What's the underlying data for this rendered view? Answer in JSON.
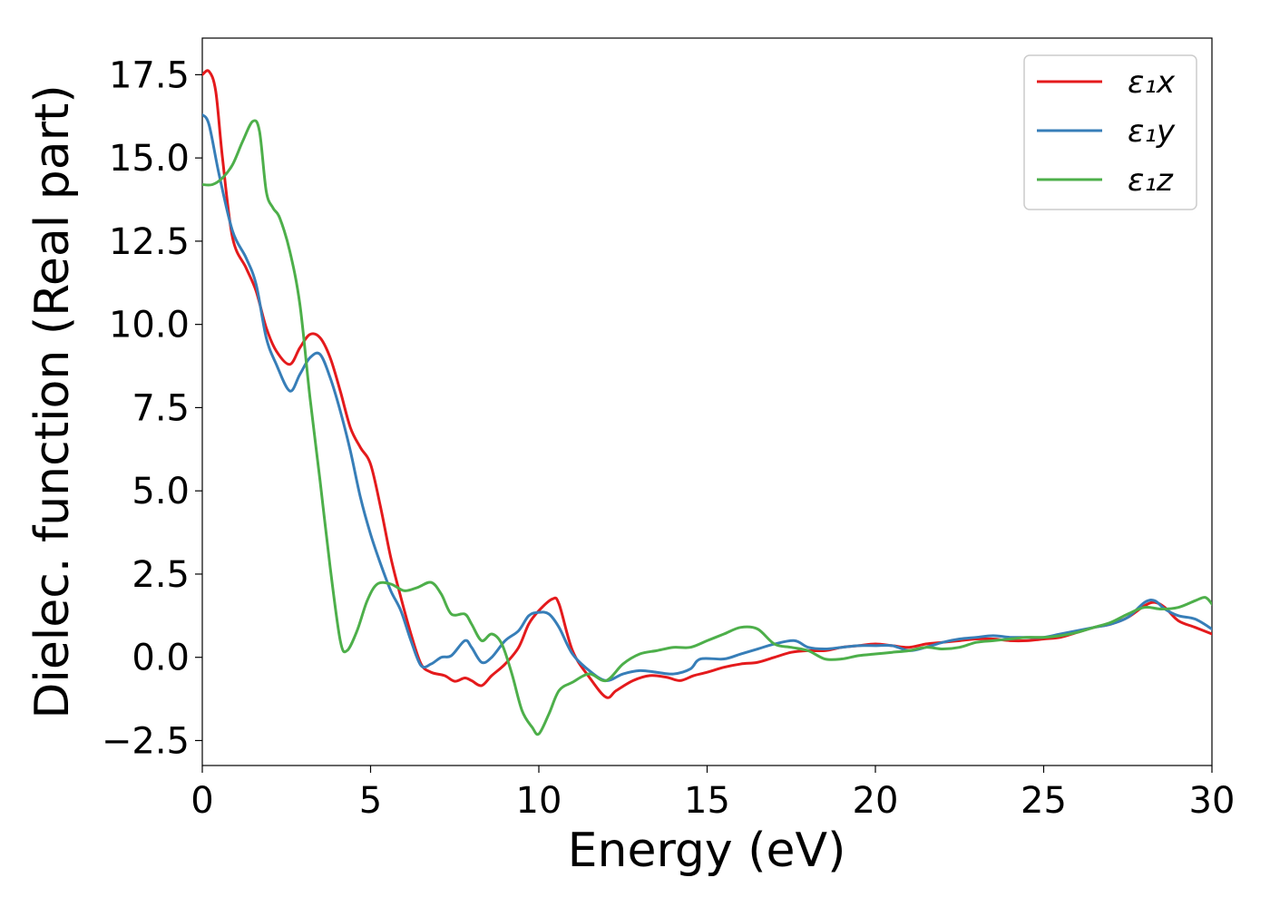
{
  "chart_data": {
    "type": "line",
    "xlabel": "Energy (eV)",
    "ylabel": "Dielec. function (Real part)",
    "xlim": [
      0,
      30
    ],
    "ylim": [
      -3.25,
      18.6
    ],
    "xticks": [
      0,
      5,
      10,
      15,
      20,
      25,
      30
    ],
    "yticks": [
      -2.5,
      0.0,
      2.5,
      5.0,
      7.5,
      10.0,
      12.5,
      15.0,
      17.5
    ],
    "grid": false,
    "legend_position": "top-right",
    "series": [
      {
        "name": "ε₁x",
        "color": "#e41a1c",
        "points": [
          [
            0,
            17.5
          ],
          [
            0.2,
            17.6
          ],
          [
            0.4,
            17.0
          ],
          [
            0.6,
            15.0
          ],
          [
            0.9,
            12.6
          ],
          [
            1.3,
            11.7
          ],
          [
            1.6,
            11.0
          ],
          [
            1.9,
            9.9
          ],
          [
            2.2,
            9.2
          ],
          [
            2.6,
            8.8
          ],
          [
            2.9,
            9.3
          ],
          [
            3.2,
            9.7
          ],
          [
            3.5,
            9.6
          ],
          [
            3.8,
            9.0
          ],
          [
            4.1,
            8.0
          ],
          [
            4.4,
            6.9
          ],
          [
            4.7,
            6.3
          ],
          [
            5.0,
            5.8
          ],
          [
            5.3,
            4.5
          ],
          [
            5.6,
            3.0
          ],
          [
            5.9,
            1.8
          ],
          [
            6.2,
            0.7
          ],
          [
            6.5,
            -0.2
          ],
          [
            6.8,
            -0.45
          ],
          [
            7.2,
            -0.55
          ],
          [
            7.5,
            -0.72
          ],
          [
            7.8,
            -0.62
          ],
          [
            8.0,
            -0.7
          ],
          [
            8.3,
            -0.85
          ],
          [
            8.6,
            -0.55
          ],
          [
            9.0,
            -0.2
          ],
          [
            9.4,
            0.3
          ],
          [
            9.7,
            1.0
          ],
          [
            10.0,
            1.4
          ],
          [
            10.4,
            1.75
          ],
          [
            10.6,
            1.6
          ],
          [
            11.0,
            0.2
          ],
          [
            11.5,
            -0.6
          ],
          [
            12.0,
            -1.2
          ],
          [
            12.3,
            -1.0
          ],
          [
            12.8,
            -0.7
          ],
          [
            13.3,
            -0.55
          ],
          [
            13.8,
            -0.6
          ],
          [
            14.2,
            -0.7
          ],
          [
            14.6,
            -0.55
          ],
          [
            15.0,
            -0.45
          ],
          [
            15.5,
            -0.3
          ],
          [
            16.0,
            -0.2
          ],
          [
            16.5,
            -0.15
          ],
          [
            17.0,
            0.0
          ],
          [
            17.5,
            0.15
          ],
          [
            18.0,
            0.2
          ],
          [
            18.5,
            0.2
          ],
          [
            19.0,
            0.3
          ],
          [
            19.5,
            0.35
          ],
          [
            20.0,
            0.4
          ],
          [
            20.5,
            0.35
          ],
          [
            21.0,
            0.3
          ],
          [
            21.5,
            0.4
          ],
          [
            22.0,
            0.45
          ],
          [
            22.5,
            0.5
          ],
          [
            23.0,
            0.55
          ],
          [
            23.5,
            0.55
          ],
          [
            24.0,
            0.5
          ],
          [
            24.5,
            0.5
          ],
          [
            25.0,
            0.55
          ],
          [
            25.5,
            0.6
          ],
          [
            26.0,
            0.75
          ],
          [
            26.5,
            0.9
          ],
          [
            27.0,
            1.0
          ],
          [
            27.5,
            1.2
          ],
          [
            28.0,
            1.55
          ],
          [
            28.3,
            1.65
          ],
          [
            28.6,
            1.5
          ],
          [
            29.0,
            1.1
          ],
          [
            29.5,
            0.9
          ],
          [
            30.0,
            0.7
          ]
        ]
      },
      {
        "name": "ε₁y",
        "color": "#377eb8",
        "points": [
          [
            0,
            16.3
          ],
          [
            0.2,
            16.0
          ],
          [
            0.5,
            14.5
          ],
          [
            0.9,
            12.8
          ],
          [
            1.3,
            12.0
          ],
          [
            1.6,
            11.2
          ],
          [
            1.9,
            9.6
          ],
          [
            2.2,
            8.8
          ],
          [
            2.6,
            8.0
          ],
          [
            2.9,
            8.5
          ],
          [
            3.2,
            9.0
          ],
          [
            3.5,
            9.1
          ],
          [
            3.8,
            8.4
          ],
          [
            4.1,
            7.4
          ],
          [
            4.4,
            6.2
          ],
          [
            4.7,
            4.8
          ],
          [
            5.0,
            3.7
          ],
          [
            5.3,
            2.8
          ],
          [
            5.6,
            2.0
          ],
          [
            5.9,
            1.4
          ],
          [
            6.2,
            0.5
          ],
          [
            6.5,
            -0.25
          ],
          [
            6.8,
            -0.2
          ],
          [
            7.1,
            0.0
          ],
          [
            7.4,
            0.05
          ],
          [
            7.8,
            0.5
          ],
          [
            8.0,
            0.3
          ],
          [
            8.3,
            -0.15
          ],
          [
            8.6,
            0.0
          ],
          [
            9.0,
            0.5
          ],
          [
            9.4,
            0.8
          ],
          [
            9.7,
            1.25
          ],
          [
            10.0,
            1.35
          ],
          [
            10.3,
            1.3
          ],
          [
            10.6,
            0.9
          ],
          [
            11.0,
            0.1
          ],
          [
            11.5,
            -0.4
          ],
          [
            12.0,
            -0.7
          ],
          [
            12.5,
            -0.5
          ],
          [
            13.0,
            -0.4
          ],
          [
            13.5,
            -0.45
          ],
          [
            14.0,
            -0.5
          ],
          [
            14.5,
            -0.35
          ],
          [
            14.8,
            -0.05
          ],
          [
            15.5,
            -0.05
          ],
          [
            16.0,
            0.1
          ],
          [
            16.5,
            0.25
          ],
          [
            17.0,
            0.4
          ],
          [
            17.6,
            0.5
          ],
          [
            18.0,
            0.3
          ],
          [
            18.5,
            0.25
          ],
          [
            19.0,
            0.3
          ],
          [
            19.5,
            0.35
          ],
          [
            20.0,
            0.35
          ],
          [
            20.5,
            0.35
          ],
          [
            21.0,
            0.2
          ],
          [
            21.5,
            0.3
          ],
          [
            22.0,
            0.45
          ],
          [
            22.5,
            0.55
          ],
          [
            23.0,
            0.6
          ],
          [
            23.5,
            0.65
          ],
          [
            24.0,
            0.6
          ],
          [
            24.5,
            0.6
          ],
          [
            25.0,
            0.6
          ],
          [
            25.5,
            0.7
          ],
          [
            26.0,
            0.8
          ],
          [
            26.5,
            0.9
          ],
          [
            27.0,
            1.0
          ],
          [
            27.5,
            1.2
          ],
          [
            28.0,
            1.65
          ],
          [
            28.3,
            1.7
          ],
          [
            28.6,
            1.45
          ],
          [
            29.0,
            1.25
          ],
          [
            29.5,
            1.15
          ],
          [
            30.0,
            0.85
          ]
        ]
      },
      {
        "name": "ε₁z",
        "color": "#4daf4a",
        "points": [
          [
            0,
            14.2
          ],
          [
            0.3,
            14.2
          ],
          [
            0.6,
            14.4
          ],
          [
            0.9,
            14.8
          ],
          [
            1.2,
            15.5
          ],
          [
            1.5,
            16.1
          ],
          [
            1.7,
            15.8
          ],
          [
            1.9,
            14.0
          ],
          [
            2.1,
            13.5
          ],
          [
            2.3,
            13.2
          ],
          [
            2.6,
            12.2
          ],
          [
            2.9,
            10.6
          ],
          [
            3.2,
            7.8
          ],
          [
            3.5,
            5.3
          ],
          [
            3.8,
            2.7
          ],
          [
            4.1,
            0.5
          ],
          [
            4.3,
            0.2
          ],
          [
            4.6,
            0.8
          ],
          [
            4.9,
            1.7
          ],
          [
            5.2,
            2.2
          ],
          [
            5.6,
            2.2
          ],
          [
            6.0,
            2.0
          ],
          [
            6.4,
            2.1
          ],
          [
            6.8,
            2.25
          ],
          [
            7.1,
            1.9
          ],
          [
            7.4,
            1.3
          ],
          [
            7.8,
            1.3
          ],
          [
            8.0,
            1.0
          ],
          [
            8.3,
            0.5
          ],
          [
            8.6,
            0.7
          ],
          [
            8.9,
            0.4
          ],
          [
            9.2,
            -0.5
          ],
          [
            9.5,
            -1.6
          ],
          [
            9.8,
            -2.1
          ],
          [
            10.0,
            -2.3
          ],
          [
            10.3,
            -1.7
          ],
          [
            10.6,
            -1.0
          ],
          [
            11.0,
            -0.75
          ],
          [
            11.5,
            -0.5
          ],
          [
            12.0,
            -0.7
          ],
          [
            12.5,
            -0.2
          ],
          [
            13.0,
            0.1
          ],
          [
            13.5,
            0.2
          ],
          [
            14.0,
            0.3
          ],
          [
            14.5,
            0.3
          ],
          [
            15.0,
            0.5
          ],
          [
            15.5,
            0.7
          ],
          [
            16.0,
            0.9
          ],
          [
            16.5,
            0.85
          ],
          [
            17.0,
            0.4
          ],
          [
            17.5,
            0.3
          ],
          [
            18.0,
            0.2
          ],
          [
            18.5,
            -0.05
          ],
          [
            19.0,
            -0.05
          ],
          [
            19.5,
            0.05
          ],
          [
            20.0,
            0.1
          ],
          [
            20.5,
            0.15
          ],
          [
            21.0,
            0.2
          ],
          [
            21.5,
            0.3
          ],
          [
            22.0,
            0.25
          ],
          [
            22.5,
            0.3
          ],
          [
            23.0,
            0.45
          ],
          [
            23.5,
            0.5
          ],
          [
            24.0,
            0.55
          ],
          [
            24.5,
            0.6
          ],
          [
            25.0,
            0.6
          ],
          [
            25.5,
            0.65
          ],
          [
            26.0,
            0.75
          ],
          [
            26.5,
            0.9
          ],
          [
            27.0,
            1.05
          ],
          [
            27.5,
            1.3
          ],
          [
            28.0,
            1.5
          ],
          [
            28.5,
            1.45
          ],
          [
            29.0,
            1.5
          ],
          [
            29.5,
            1.7
          ],
          [
            29.8,
            1.8
          ],
          [
            30.0,
            1.6
          ]
        ]
      }
    ]
  }
}
